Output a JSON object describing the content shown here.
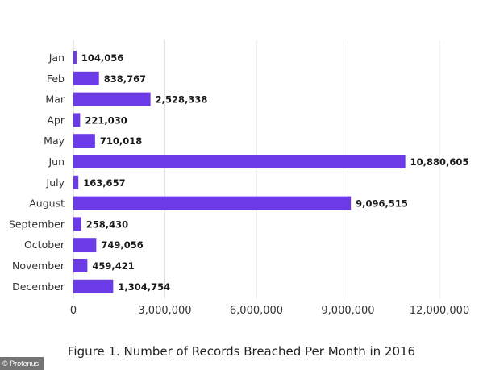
{
  "chart_data": {
    "type": "bar",
    "orientation": "horizontal",
    "categories": [
      "Jan",
      "Feb",
      "Mar",
      "Apr",
      "May",
      "Jun",
      "July",
      "August",
      "September",
      "October",
      "November",
      "December"
    ],
    "values": [
      104056,
      838767,
      2528338,
      221030,
      710018,
      10880605,
      163657,
      9096515,
      258430,
      749056,
      459421,
      1304754
    ],
    "value_labels": [
      "104,056",
      "838,767",
      "2,528,338",
      "221,030",
      "710,018",
      "10,880,605",
      "163,657",
      "9,096,515",
      "258,430",
      "749,056",
      "459,421",
      "1,304,754"
    ],
    "x_ticks": [
      0,
      3000000,
      6000000,
      9000000,
      12000000
    ],
    "x_tick_labels": [
      "0",
      "3,000,000",
      "6,000,000",
      "9,000,000",
      "12,000,000"
    ],
    "xlim": [
      0,
      12000000
    ],
    "grid": "vertical",
    "legend": "none",
    "bar_color": "#6a3be6",
    "xlabel": "",
    "ylabel": ""
  },
  "caption": "Figure 1. Number of Records Breached Per Month in 2016",
  "credit": "© Protenus"
}
